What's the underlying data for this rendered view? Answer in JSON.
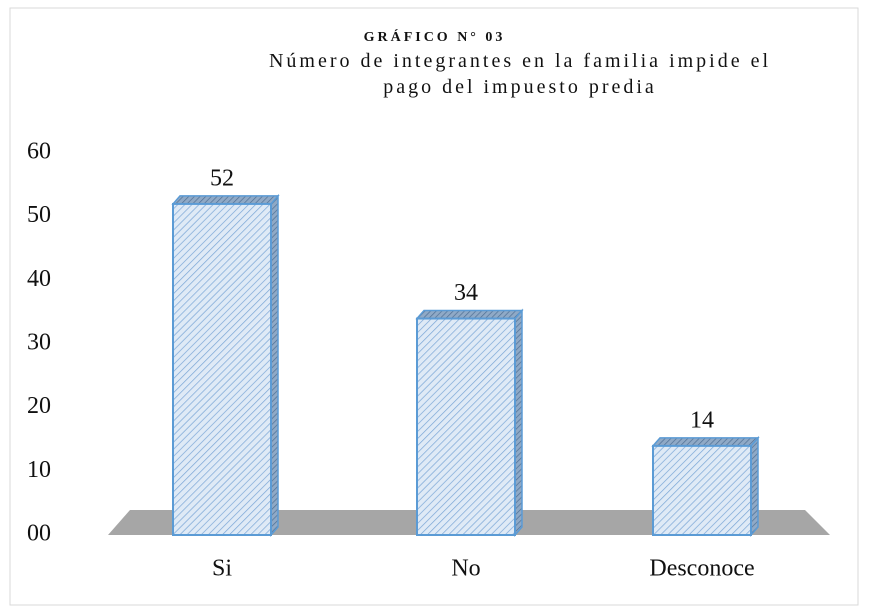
{
  "chart_data": {
    "type": "bar3d",
    "title": "GRÁFICO N° 03",
    "subtitle": "Número de integrantes en la familia impide el pago del impuesto predia",
    "categories": [
      "Si",
      "No",
      "Desconoce"
    ],
    "values": [
      52,
      34,
      14
    ],
    "color": "#5b9bd5",
    "ylim": [
      0,
      60
    ],
    "yticks": [
      {
        "value": 0,
        "label": "00"
      },
      10,
      20,
      30,
      40,
      50,
      60
    ]
  }
}
